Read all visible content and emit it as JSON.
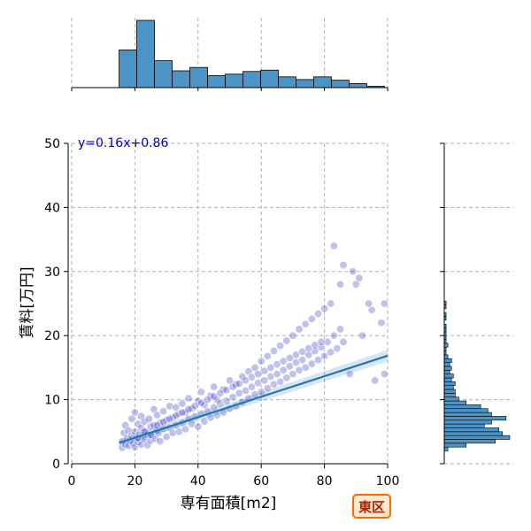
{
  "chart_data": {
    "type": "scatter",
    "xlabel": "専有面積[m2]",
    "ylabel": "賃料[万円]",
    "xlim": [
      0,
      100
    ],
    "ylim": [
      0,
      50
    ],
    "x_ticks": [
      "0",
      "20",
      "40",
      "60",
      "80",
      "100"
    ],
    "y_ticks": [
      "0",
      "10",
      "20",
      "30",
      "40",
      "50"
    ],
    "grid": true,
    "regression": {
      "label": "y=0.16x+0.86",
      "slope": 0.16,
      "intercept": 0.86,
      "x_range": [
        15,
        100
      ]
    },
    "badge": "東区",
    "colors": {
      "point": "#2020c0",
      "line": "#1f77b4",
      "hist": "#4c93c6",
      "badge_fill": "#ffe9d0",
      "badge_border": "#ff6a00"
    },
    "x_histogram": {
      "bin_edges": [
        15,
        20.6,
        26.2,
        31.8,
        37.4,
        43,
        48.6,
        54.2,
        59.8,
        65.4,
        71,
        76.6,
        82.2,
        87.8,
        93.4,
        99
      ],
      "counts": [
        56,
        100,
        40,
        25,
        30,
        18,
        20,
        24,
        26,
        16,
        12,
        16,
        11,
        6,
        2
      ]
    },
    "y_histogram": {
      "bin_edges": [
        2,
        2.6,
        3.2,
        3.8,
        4.4,
        5.0,
        5.6,
        6.2,
        6.8,
        7.4,
        8.0,
        8.6,
        9.2,
        9.8,
        10.4,
        11.0,
        11.6,
        12.2,
        12.8,
        13.4,
        14.0,
        14.6,
        15.2,
        15.8,
        16.4,
        17.0,
        17.6,
        18.2,
        18.8,
        19.4,
        20.0,
        20.6,
        21.2,
        21.8,
        22.4,
        23.0,
        23.6,
        24.2,
        24.8,
        25.4
      ],
      "counts": [
        2,
        12,
        28,
        36,
        32,
        30,
        22,
        26,
        34,
        26,
        24,
        20,
        12,
        8,
        6,
        6,
        5,
        6,
        4,
        5,
        3,
        4,
        3,
        4,
        2,
        1,
        1,
        2,
        1,
        1,
        1,
        1,
        1,
        0,
        1,
        1,
        0,
        1,
        1
      ]
    },
    "points": [
      [
        16,
        2.5
      ],
      [
        16,
        3.5
      ],
      [
        16.5,
        4.8
      ],
      [
        17,
        3
      ],
      [
        17,
        6
      ],
      [
        17.5,
        4
      ],
      [
        18,
        2.8
      ],
      [
        18,
        5.2
      ],
      [
        18.5,
        3.6
      ],
      [
        19,
        4.4
      ],
      [
        19,
        7
      ],
      [
        19.5,
        3.2
      ],
      [
        20,
        2.6
      ],
      [
        20,
        5
      ],
      [
        20,
        8
      ],
      [
        20.5,
        4
      ],
      [
        21,
        3.4
      ],
      [
        21,
        6.2
      ],
      [
        21.5,
        4.6
      ],
      [
        22,
        3
      ],
      [
        22,
        5.6
      ],
      [
        22,
        7.4
      ],
      [
        22.5,
        4.2
      ],
      [
        23,
        3.8
      ],
      [
        23,
        6.6
      ],
      [
        23.5,
        5
      ],
      [
        24,
        2.9
      ],
      [
        24,
        4.5
      ],
      [
        24.5,
        7
      ],
      [
        25,
        3.6
      ],
      [
        25,
        5.8
      ],
      [
        25.5,
        4.4
      ],
      [
        26,
        6
      ],
      [
        26,
        8.5
      ],
      [
        26.5,
        3.9
      ],
      [
        27,
        5.2
      ],
      [
        27,
        7.6
      ],
      [
        27.5,
        4.8
      ],
      [
        28,
        3.5
      ],
      [
        28,
        6.4
      ],
      [
        29,
        5.4
      ],
      [
        29,
        8.2
      ],
      [
        30,
        4.2
      ],
      [
        30,
        6.8
      ],
      [
        31,
        5.6
      ],
      [
        31,
        9
      ],
      [
        32,
        4.8
      ],
      [
        32,
        7.2
      ],
      [
        33,
        6
      ],
      [
        33,
        8.8
      ],
      [
        34,
        5
      ],
      [
        34,
        7.8
      ],
      [
        35,
        6.4
      ],
      [
        35,
        9.4
      ],
      [
        36,
        5.4
      ],
      [
        36,
        8
      ],
      [
        37,
        7
      ],
      [
        37,
        10.2
      ],
      [
        38,
        6.2
      ],
      [
        38,
        8.6
      ],
      [
        39,
        7.4
      ],
      [
        40,
        5.8
      ],
      [
        40,
        9.8
      ],
      [
        41,
        7.8
      ],
      [
        41,
        11.2
      ],
      [
        42,
        6.6
      ],
      [
        42,
        9.2
      ],
      [
        43,
        8.2
      ],
      [
        44,
        7.2
      ],
      [
        44,
        10.6
      ],
      [
        45,
        8.8
      ],
      [
        45,
        12
      ],
      [
        46,
        7.6
      ],
      [
        46,
        10
      ],
      [
        47,
        9.4
      ],
      [
        48,
        8
      ],
      [
        48,
        11.6
      ],
      [
        49,
        9.8
      ],
      [
        50,
        8.6
      ],
      [
        50,
        13
      ],
      [
        51,
        10.4
      ],
      [
        52,
        9
      ],
      [
        52,
        12.4
      ],
      [
        53,
        11
      ],
      [
        54,
        9.6
      ],
      [
        54,
        13.6
      ],
      [
        55,
        11.4
      ],
      [
        56,
        10.2
      ],
      [
        56,
        14.4
      ],
      [
        57,
        12
      ],
      [
        58,
        10.8
      ],
      [
        58,
        15
      ],
      [
        59,
        12.6
      ],
      [
        60,
        11.2
      ],
      [
        60,
        16
      ],
      [
        61,
        13
      ],
      [
        62,
        11.8
      ],
      [
        62,
        16.8
      ],
      [
        63,
        13.6
      ],
      [
        64,
        12.4
      ],
      [
        64,
        17.6
      ],
      [
        65,
        14
      ],
      [
        66,
        12.8
      ],
      [
        66,
        18.4
      ],
      [
        67,
        14.6
      ],
      [
        68,
        13.4
      ],
      [
        68,
        19.2
      ],
      [
        69,
        15.2
      ],
      [
        70,
        14
      ],
      [
        70,
        20
      ],
      [
        71,
        15.8
      ],
      [
        72,
        14.6
      ],
      [
        72,
        21
      ],
      [
        73,
        16.2
      ],
      [
        74,
        15
      ],
      [
        74,
        21.8
      ],
      [
        75,
        17
      ],
      [
        76,
        15.6
      ],
      [
        76,
        22.6
      ],
      [
        77,
        17.6
      ],
      [
        78,
        16.2
      ],
      [
        78,
        23.4
      ],
      [
        79,
        18.2
      ],
      [
        80,
        16.8
      ],
      [
        80,
        24.2
      ],
      [
        81,
        19
      ],
      [
        82,
        17.4
      ],
      [
        82,
        25
      ],
      [
        83,
        20
      ],
      [
        84,
        18
      ],
      [
        85,
        21
      ],
      [
        86,
        19
      ],
      [
        88,
        14
      ],
      [
        90,
        28
      ],
      [
        92,
        20
      ],
      [
        95,
        24
      ],
      [
        98,
        22
      ],
      [
        99,
        14
      ],
      [
        83,
        34
      ],
      [
        85,
        28
      ],
      [
        86,
        31
      ],
      [
        89,
        30
      ],
      [
        91,
        29
      ],
      [
        94,
        25
      ],
      [
        96,
        13
      ],
      [
        99,
        25
      ],
      [
        21,
        4
      ],
      [
        23,
        5
      ],
      [
        25,
        4.5
      ],
      [
        27,
        6
      ],
      [
        29,
        6.5
      ],
      [
        31,
        7
      ],
      [
        33,
        7.5
      ],
      [
        35,
        8
      ],
      [
        37,
        8.5
      ],
      [
        39,
        9
      ],
      [
        41,
        9.5
      ],
      [
        43,
        10
      ],
      [
        45,
        10.5
      ],
      [
        47,
        11
      ],
      [
        49,
        11.5
      ],
      [
        51,
        12
      ],
      [
        53,
        12.5
      ],
      [
        55,
        13
      ],
      [
        57,
        13.5
      ],
      [
        59,
        14
      ],
      [
        61,
        14.5
      ],
      [
        63,
        15
      ],
      [
        65,
        15.5
      ],
      [
        67,
        16
      ],
      [
        69,
        16.5
      ],
      [
        71,
        17
      ],
      [
        73,
        17.5
      ],
      [
        75,
        18
      ],
      [
        77,
        18.5
      ],
      [
        79,
        19
      ]
    ]
  }
}
